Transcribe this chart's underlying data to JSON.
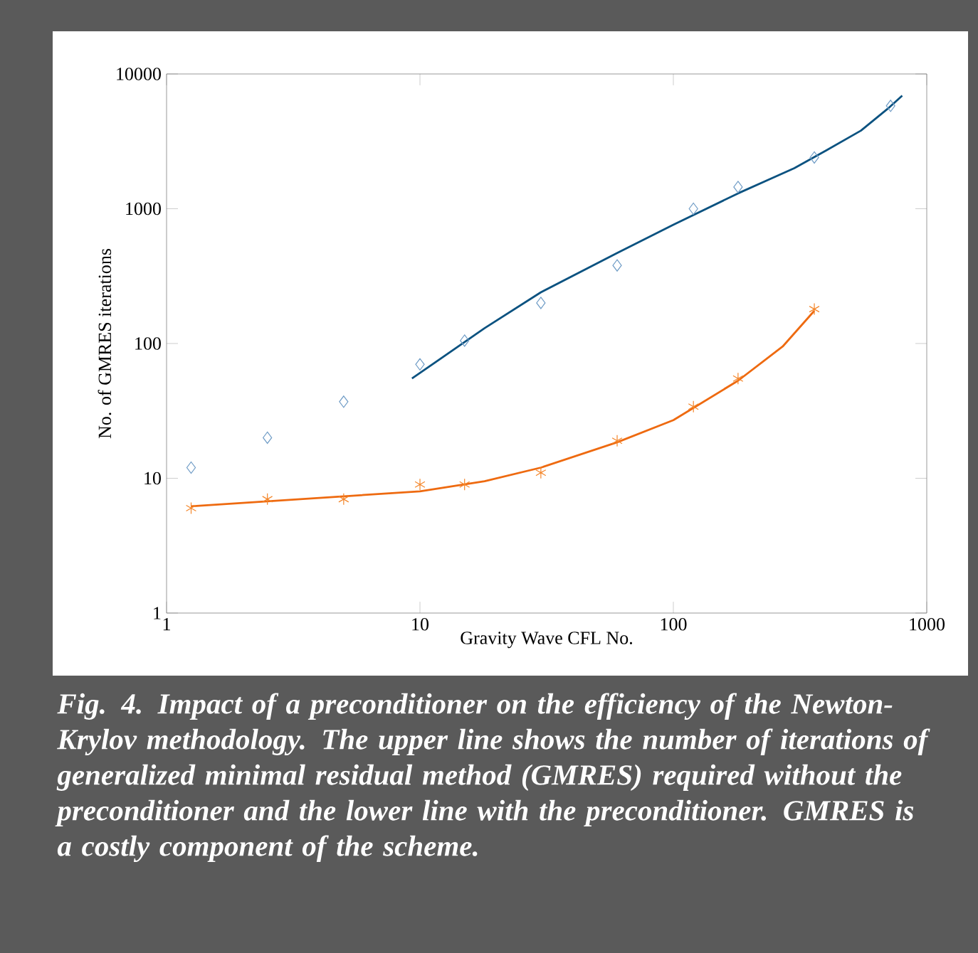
{
  "chart_data": {
    "type": "scatter",
    "xlabel": "Gravity Wave CFL No.",
    "ylabel": "No. of GMRES iterations",
    "log": "xy",
    "grid": false,
    "xlim": [
      1,
      1000
    ],
    "ylim": [
      1,
      10000
    ],
    "xticks": [
      1,
      10,
      100,
      1000
    ],
    "yticks": [
      1,
      10,
      100,
      1000,
      10000
    ],
    "series": [
      {
        "marker": "diamond",
        "color": "#6f9cc6",
        "x": [
          1.25,
          2.5,
          5,
          10,
          15,
          30,
          60,
          120,
          180,
          360,
          720
        ],
        "values": [
          12,
          20,
          37,
          70,
          105,
          200,
          380,
          1000,
          1450,
          2400,
          5800
        ]
      },
      {
        "marker": "cross",
        "color": "#f4862a",
        "x": [
          1.25,
          2.5,
          5,
          10,
          15,
          30,
          60,
          120,
          180,
          360
        ],
        "values": [
          6,
          7,
          7,
          9,
          9,
          11,
          19,
          34,
          55,
          180
        ]
      },
      {
        "type": "line",
        "marker": "none",
        "line_style": "solid",
        "color": "#0b5280",
        "x": [
          9.3,
          18,
          30,
          60,
          100,
          180,
          300,
          400,
          550,
          700,
          800
        ],
        "values": [
          55,
          130,
          240,
          470,
          760,
          1300,
          2000,
          2700,
          3800,
          5500,
          6900
        ]
      },
      {
        "type": "line",
        "marker": "none",
        "line_style": "solid",
        "color": "#ee6a10",
        "x": [
          1.25,
          10,
          18,
          30,
          60,
          100,
          180,
          270,
          360
        ],
        "values": [
          6.2,
          8,
          9.5,
          12,
          18.5,
          27,
          53,
          95,
          175
        ]
      }
    ],
    "annotations": [
      "Fig. 4.   Impact of a preconditioner on the efficiency of the Newton-Krylov methodology. The upper line shows the number of iterations of generalized minimal residual method (GMRES) required without the preconditioner and the lower line with the preconditioner. GMRES is a costly component of the scheme."
    ]
  }
}
